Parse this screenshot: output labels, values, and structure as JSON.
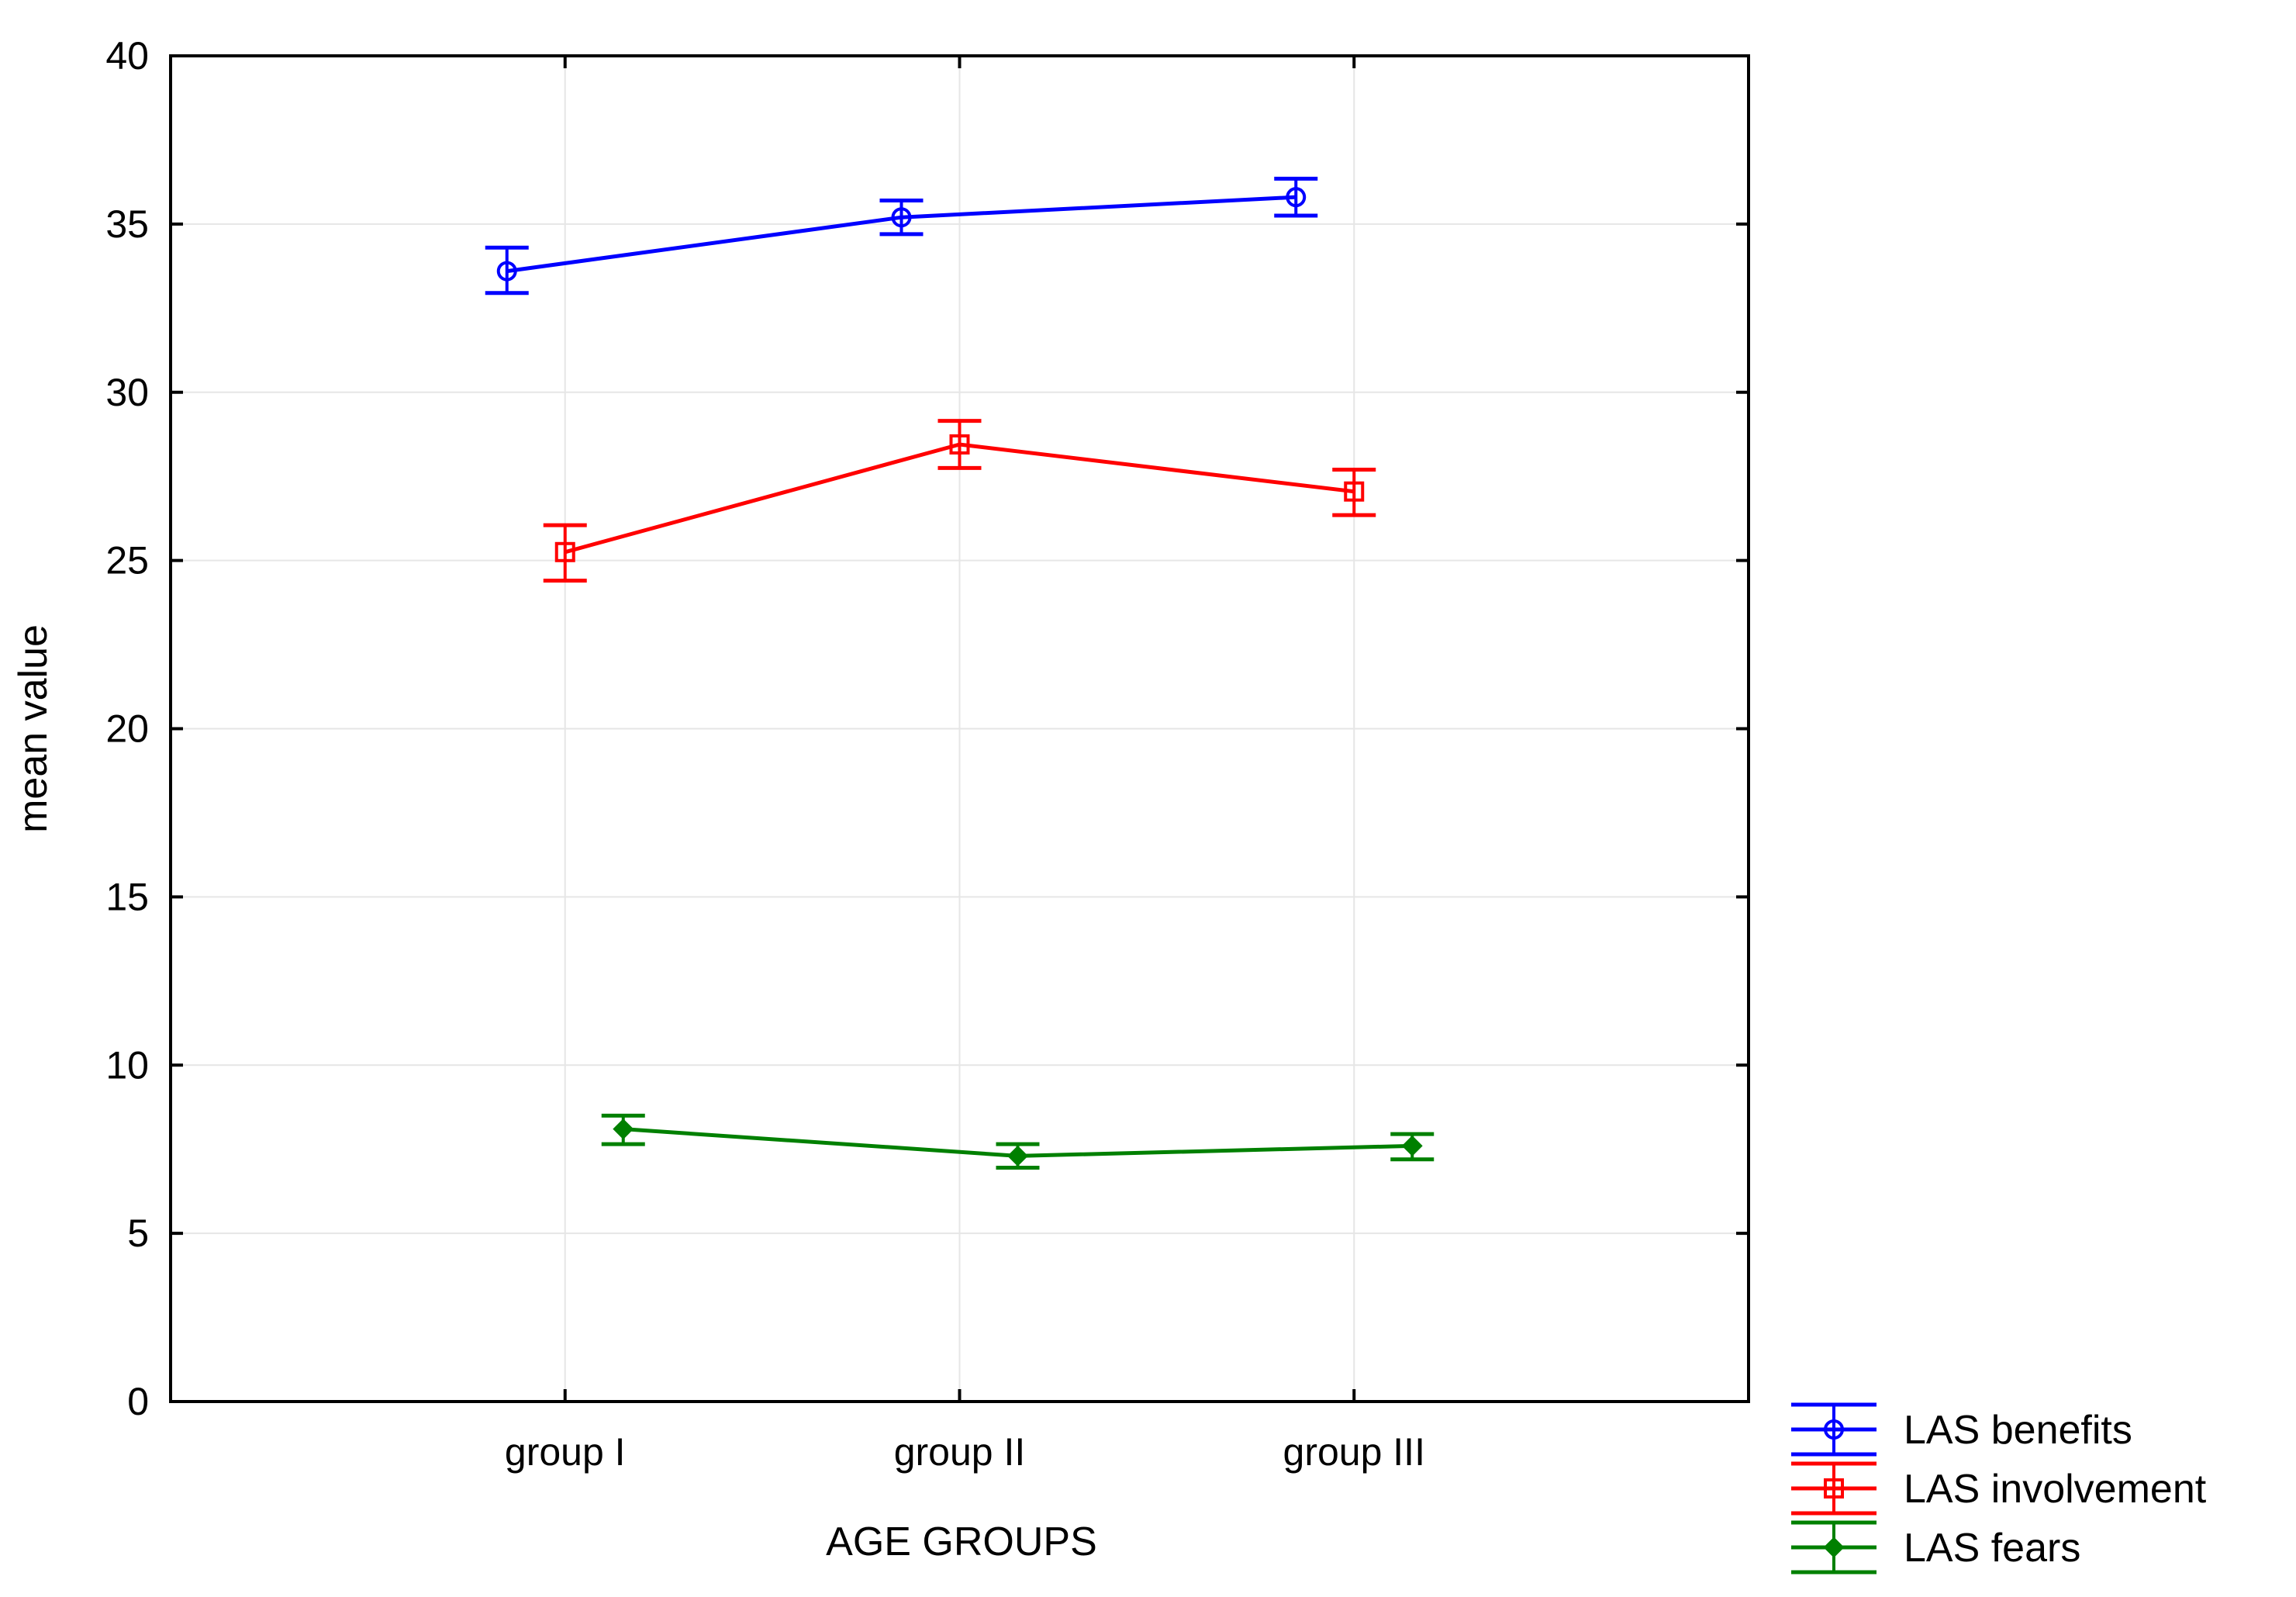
{
  "chart_data": {
    "type": "line",
    "title": "",
    "xlabel": "AGE GROUPS",
    "ylabel": "mean value",
    "categories": [
      "group I",
      "group II",
      "group III"
    ],
    "ylim": [
      0,
      40
    ],
    "yticks": [
      0,
      5,
      10,
      15,
      20,
      25,
      30,
      35,
      40
    ],
    "grid": true,
    "legend_position": "bottom-right-outside",
    "error_bars": true,
    "series": [
      {
        "name": "LAS benefits",
        "color": "#0000ff",
        "marker": "circle",
        "values": [
          33.6,
          35.2,
          35.8
        ],
        "lower": [
          32.95,
          34.7,
          35.25
        ],
        "upper": [
          34.3,
          35.7,
          36.35
        ]
      },
      {
        "name": "LAS involvement",
        "color": "#ff0000",
        "marker": "square",
        "values": [
          25.25,
          28.45,
          27.05
        ],
        "lower": [
          24.4,
          27.75,
          26.35
        ],
        "upper": [
          26.05,
          29.15,
          27.7
        ]
      },
      {
        "name": "LAS fears",
        "color": "#008000",
        "marker": "diamond",
        "values": [
          8.1,
          7.3,
          7.6
        ],
        "lower": [
          7.65,
          6.95,
          7.2
        ],
        "upper": [
          8.5,
          7.65,
          7.95
        ]
      }
    ]
  }
}
